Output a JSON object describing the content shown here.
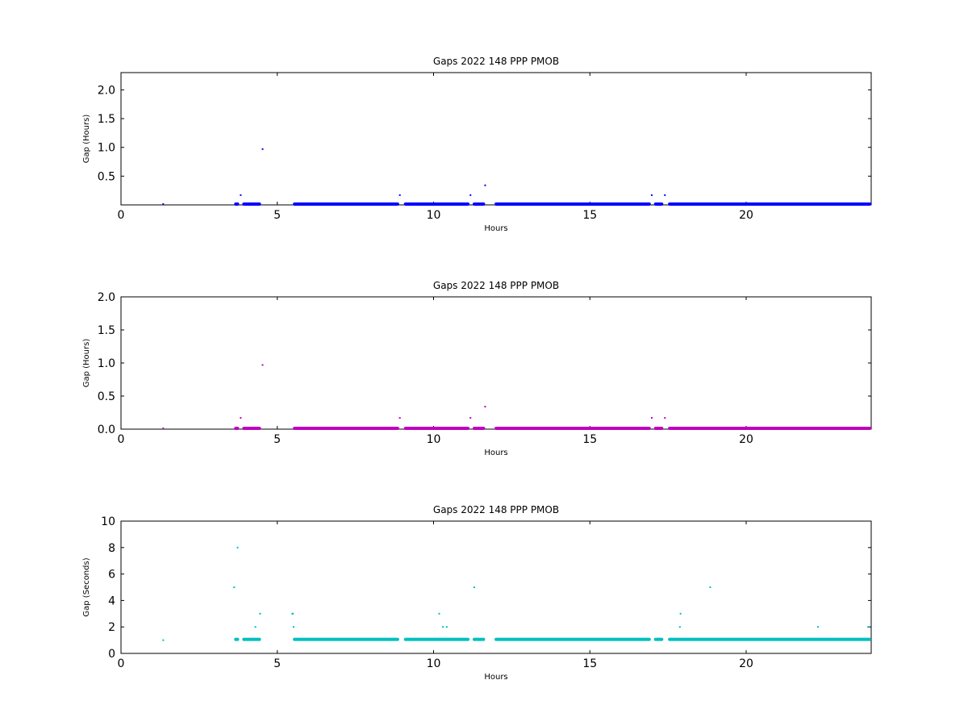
{
  "chart_data": [
    {
      "type": "scatter",
      "title": "Gaps 2022 148 PPP  PMOB",
      "xlabel": "Hours",
      "ylabel": "Gap (Hours)",
      "xlim": [
        0,
        24
      ],
      "ylim": [
        0,
        2.3
      ],
      "xticks": [
        0,
        5,
        10,
        15,
        20
      ],
      "yticks": [
        0.5,
        1.0,
        1.5,
        2.0
      ],
      "ytick_labels": [
        "0.5",
        "1.0",
        "1.5",
        "2.0"
      ],
      "color": "#0000ff",
      "grid": false,
      "dense_runs": [
        {
          "x": [
            3.62,
            3.78
          ],
          "y": 0.0
        },
        {
          "x": [
            3.88,
            4.48
          ],
          "y": 0.0
        },
        {
          "x": [
            5.5,
            8.9
          ],
          "y": 0.0
        },
        {
          "x": [
            9.05,
            11.15
          ],
          "y": 0.0
        },
        {
          "x": [
            11.25,
            11.65
          ],
          "y": 0.0
        },
        {
          "x": [
            11.95,
            16.95
          ],
          "y": 0.0
        },
        {
          "x": [
            17.05,
            17.35
          ],
          "y": 0.0
        },
        {
          "x": [
            17.5,
            24.0
          ],
          "y": 0.0
        }
      ],
      "points": {
        "x": [
          1.35,
          3.83,
          4.53,
          8.92,
          11.18,
          11.65,
          16.98,
          17.4
        ],
        "y": [
          0.0,
          0.17,
          0.97,
          0.17,
          0.17,
          0.34,
          0.17,
          0.17
        ]
      }
    },
    {
      "type": "scatter",
      "title": "Gaps 2022 148 PPP  PMOB",
      "xlabel": "Hours",
      "ylabel": "Gap (Hours)",
      "xlim": [
        0,
        24
      ],
      "ylim": [
        0,
        2.0
      ],
      "xticks": [
        0,
        5,
        10,
        15,
        20
      ],
      "yticks": [
        0.0,
        0.5,
        1.0,
        1.5,
        2.0
      ],
      "ytick_labels": [
        "0.0",
        "0.5",
        "1.0",
        "1.5",
        "2.0"
      ],
      "color": "#bf00bf",
      "grid": false,
      "dense_runs": [
        {
          "x": [
            3.62,
            3.78
          ],
          "y": 0.0
        },
        {
          "x": [
            3.88,
            4.48
          ],
          "y": 0.0
        },
        {
          "x": [
            5.5,
            8.9
          ],
          "y": 0.0
        },
        {
          "x": [
            9.05,
            11.15
          ],
          "y": 0.0
        },
        {
          "x": [
            11.25,
            11.65
          ],
          "y": 0.0
        },
        {
          "x": [
            11.95,
            16.95
          ],
          "y": 0.0
        },
        {
          "x": [
            17.05,
            17.35
          ],
          "y": 0.0
        },
        {
          "x": [
            17.5,
            24.0
          ],
          "y": 0.0
        }
      ],
      "points": {
        "x": [
          1.35,
          3.83,
          4.53,
          8.92,
          11.18,
          11.65,
          16.98,
          17.4
        ],
        "y": [
          0.0,
          0.17,
          0.97,
          0.17,
          0.17,
          0.34,
          0.17,
          0.17
        ]
      }
    },
    {
      "type": "scatter",
      "title": "Gaps 2022 148 PPP  PMOB",
      "xlabel": "Hours",
      "ylabel": "Gap (Seconds)",
      "xlim": [
        0,
        24
      ],
      "ylim": [
        0,
        10
      ],
      "xticks": [
        0,
        5,
        10,
        15,
        20
      ],
      "yticks": [
        0,
        2,
        4,
        6,
        8,
        10
      ],
      "ytick_labels": [
        "0",
        "2",
        "4",
        "6",
        "8",
        "10"
      ],
      "color": "#00bfbf",
      "grid": false,
      "dense_runs": [
        {
          "x": [
            3.62,
            3.78
          ],
          "y": 1.0
        },
        {
          "x": [
            3.88,
            4.48
          ],
          "y": 1.0
        },
        {
          "x": [
            5.5,
            8.9
          ],
          "y": 1.0
        },
        {
          "x": [
            9.05,
            11.15
          ],
          "y": 1.0
        },
        {
          "x": [
            11.25,
            11.65
          ],
          "y": 1.0
        },
        {
          "x": [
            11.95,
            16.95
          ],
          "y": 1.0
        },
        {
          "x": [
            17.05,
            17.35
          ],
          "y": 1.0
        },
        {
          "x": [
            17.5,
            24.0
          ],
          "y": 1.0
        }
      ],
      "points": {
        "x": [
          1.35,
          3.62,
          3.73,
          4.3,
          4.45,
          5.48,
          5.5,
          5.52,
          10.18,
          10.3,
          10.42,
          11.3,
          17.88,
          17.9,
          18.85,
          22.3,
          23.9
        ],
        "y": [
          1,
          5,
          8,
          2,
          3,
          3,
          3,
          2,
          3,
          2,
          2,
          5,
          2,
          3,
          5,
          2,
          2
        ]
      }
    }
  ]
}
